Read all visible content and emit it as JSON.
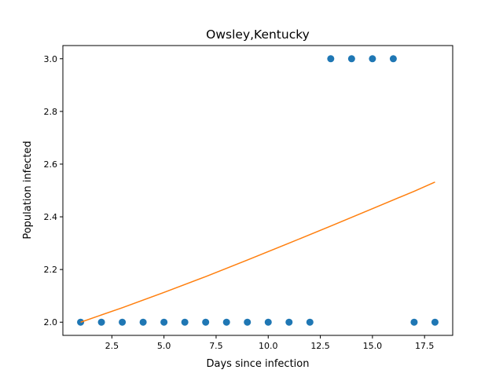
{
  "chart_data": {
    "type": "scatter",
    "title": "Owsley,Kentucky",
    "xlabel": "Days since infection",
    "ylabel": "Population infected",
    "xlim": [
      0.15,
      18.85
    ],
    "ylim": [
      1.95,
      3.05
    ],
    "grid": false,
    "x_ticks": [
      2.5,
      5.0,
      7.5,
      10.0,
      12.5,
      15.0,
      17.5
    ],
    "x_tick_labels": [
      "2.5",
      "5.0",
      "7.5",
      "10.0",
      "12.5",
      "15.0",
      "17.5"
    ],
    "y_ticks": [
      2.0,
      2.2,
      2.4,
      2.6,
      2.8,
      3.0
    ],
    "y_tick_labels": [
      "2.0",
      "2.2",
      "2.4",
      "2.6",
      "2.8",
      "3.0"
    ],
    "series": [
      {
        "type": "scatter",
        "color": "#1f77b4",
        "x": [
          1,
          2,
          3,
          4,
          5,
          6,
          7,
          8,
          9,
          10,
          11,
          12,
          13,
          14,
          15,
          16,
          17,
          18
        ],
        "y": [
          2,
          2,
          2,
          2,
          2,
          2,
          2,
          2,
          2,
          2,
          2,
          2,
          3,
          3,
          3,
          3,
          2,
          2
        ]
      },
      {
        "type": "line",
        "color": "#ff7f0e",
        "x": [
          1,
          3,
          5,
          7,
          9,
          11,
          13,
          15,
          17,
          18
        ],
        "y": [
          2.0,
          2.055,
          2.113,
          2.173,
          2.236,
          2.3,
          2.365,
          2.431,
          2.497,
          2.532
        ]
      }
    ]
  }
}
